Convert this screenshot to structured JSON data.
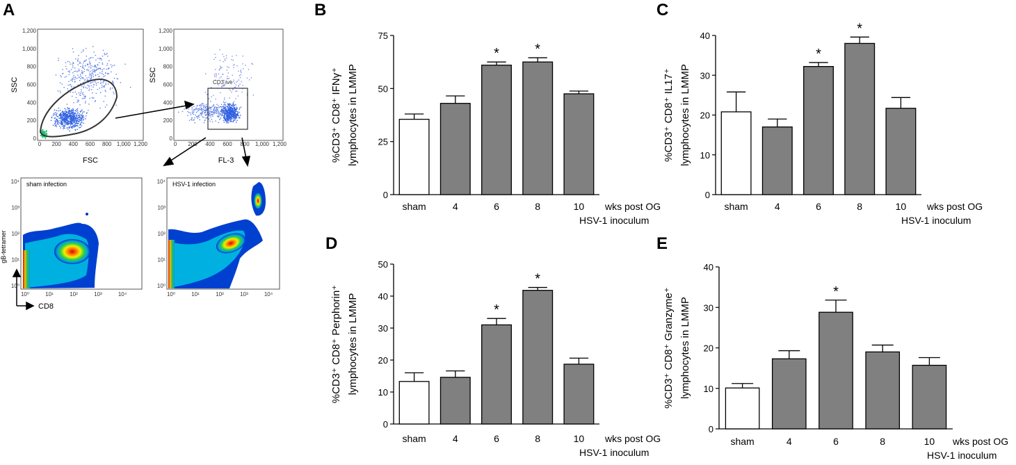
{
  "panelA": {
    "letter": "A",
    "plot1": {
      "ylabel": "SSC",
      "xlabel": "FSC"
    },
    "plot2": {
      "ylabel": "SSC",
      "xlabel": "FL-3",
      "gate_label": "CD3 ive"
    },
    "plot3": {
      "title": "sham infection",
      "ylabel": "gB-tetramer",
      "xlabel": "CD8"
    },
    "plot4": {
      "title": "HSV-1 infection"
    },
    "scatter_ticks_y": [
      "1,200",
      "1,000",
      "800",
      "600",
      "400",
      "200",
      "0"
    ],
    "scatter_ticks_x": [
      "0",
      "200",
      "400",
      "600",
      "800",
      "1,000",
      "1,200"
    ],
    "log_ticks_y": [
      "10⁴",
      "10³",
      "10²",
      "10¹",
      "10⁰"
    ],
    "log_ticks_x": [
      "10⁰",
      "10¹",
      "10²",
      "10³",
      "10⁴"
    ]
  },
  "colors": {
    "filled_bar": "#808080",
    "open_bar": "#ffffff",
    "axis": "#000000"
  },
  "chart_data": [
    {
      "id": "B",
      "type": "bar",
      "letter": "B",
      "categories": [
        "sham",
        "4",
        "6",
        "8",
        "10"
      ],
      "values": [
        35.5,
        43,
        61,
        62.5,
        47.5
      ],
      "errors": [
        2.5,
        3.5,
        1.5,
        2,
        1.3
      ],
      "significant": [
        false,
        false,
        true,
        true,
        false
      ],
      "ylim": [
        0,
        75
      ],
      "yticks": [
        0,
        25,
        50,
        75
      ],
      "ylabel_line1": "%CD3⁺ CD8⁺ IFNγ⁺",
      "ylabel_line2": "lymphocytes in LMMP",
      "xlabel_line1": "wks post OG",
      "xlabel_line2": "HSV-1 inoculum",
      "star": "*"
    },
    {
      "id": "C",
      "type": "bar",
      "letter": "C",
      "categories": [
        "sham",
        "4",
        "6",
        "8",
        "10"
      ],
      "values": [
        20.8,
        17,
        32.2,
        38,
        21.7
      ],
      "errors": [
        5,
        2,
        1,
        1.6,
        2.7
      ],
      "significant": [
        false,
        false,
        true,
        true,
        false
      ],
      "ylim": [
        0,
        40
      ],
      "yticks": [
        0,
        10,
        20,
        30,
        40
      ],
      "ylabel_line1": "%CD3⁺ CD8⁺ IL17⁺",
      "ylabel_line2": "lymphocytes in LMMP",
      "xlabel_line1": "wks post OG",
      "xlabel_line2": "HSV-1 inoculum",
      "star": "*"
    },
    {
      "id": "D",
      "type": "bar",
      "letter": "D",
      "categories": [
        "sham",
        "4",
        "6",
        "8",
        "10"
      ],
      "values": [
        13.3,
        14.6,
        31,
        41.8,
        18.7
      ],
      "errors": [
        2.7,
        2,
        2,
        0.9,
        1.9
      ],
      "significant": [
        false,
        false,
        true,
        true,
        false
      ],
      "ylim": [
        0,
        50
      ],
      "yticks": [
        0,
        10,
        20,
        30,
        40,
        50
      ],
      "ylabel_line1": "%CD3⁺ CD8⁺ Perphorin⁺",
      "ylabel_line2": "lymphocytes in LMMP",
      "xlabel_line1": "wks post OG",
      "xlabel_line2": "HSV-1 inoculum",
      "star": "*"
    },
    {
      "id": "E",
      "type": "bar",
      "letter": "E",
      "categories": [
        "sham",
        "4",
        "6",
        "8",
        "10"
      ],
      "values": [
        10.1,
        17.3,
        28.8,
        19,
        15.7
      ],
      "errors": [
        1.1,
        2,
        3,
        1.7,
        1.9
      ],
      "significant": [
        false,
        false,
        true,
        false,
        false
      ],
      "ylim": [
        0,
        40
      ],
      "yticks": [
        0,
        10,
        20,
        30,
        40
      ],
      "ylabel_line1": "%CD3⁺ CD8⁺ Granzyme⁺",
      "ylabel_line2": "lymphocytes in LMMP",
      "xlabel_line1": "wks post OG",
      "xlabel_line2": "HSV-1 inoculum",
      "star": "*"
    }
  ]
}
